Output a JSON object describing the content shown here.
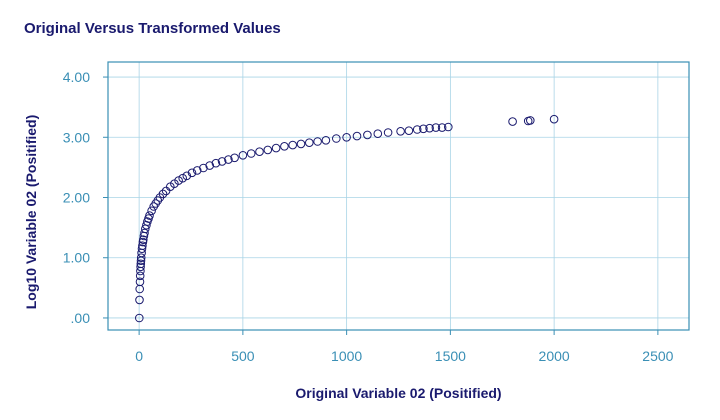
{
  "chart_data": {
    "type": "scatter",
    "title": "Original Versus Transformed Values",
    "xlabel": "Original Variable 02 (Positified)",
    "ylabel": "Log10 Variable 02 (Positified)",
    "xlim": [
      -150,
      2650
    ],
    "ylim": [
      -0.2,
      4.25
    ],
    "xticks": [
      0,
      500,
      1000,
      1500,
      2000,
      2500
    ],
    "xtick_labels": [
      "0",
      "500",
      "1000",
      "1500",
      "2000",
      "2500"
    ],
    "yticks": [
      0,
      1,
      2,
      3,
      4
    ],
    "ytick_labels": [
      ".00",
      "1.00",
      "2.00",
      "3.00",
      "4.00"
    ],
    "grid": true,
    "marker": "hollow-circle",
    "colors": {
      "marker": "#1a1a6e",
      "grid": "#a9d4e6",
      "frame": "#3a8fb5",
      "tick_text": "#3a8fb5",
      "title_text": "#1a1a6e"
    },
    "x": [
      1,
      2,
      3,
      4,
      5,
      6,
      7,
      8,
      9,
      10,
      12,
      14,
      16,
      18,
      20,
      23,
      26,
      30,
      35,
      40,
      45,
      50,
      60,
      70,
      80,
      90,
      100,
      115,
      130,
      150,
      170,
      190,
      210,
      230,
      255,
      280,
      310,
      340,
      370,
      400,
      430,
      460,
      500,
      540,
      580,
      620,
      660,
      700,
      740,
      780,
      820,
      860,
      900,
      950,
      1000,
      1050,
      1100,
      1150,
      1200,
      1260,
      1300,
      1340,
      1370,
      1400,
      1430,
      1460,
      1490,
      1800,
      1875,
      1885,
      2000
    ],
    "y": [
      0.0,
      0.3,
      0.48,
      0.6,
      0.7,
      0.78,
      0.85,
      0.9,
      0.95,
      1.0,
      1.08,
      1.15,
      1.2,
      1.26,
      1.3,
      1.36,
      1.41,
      1.48,
      1.54,
      1.6,
      1.65,
      1.7,
      1.78,
      1.85,
      1.9,
      1.95,
      2.0,
      2.06,
      2.11,
      2.18,
      2.23,
      2.28,
      2.32,
      2.36,
      2.41,
      2.45,
      2.49,
      2.53,
      2.57,
      2.6,
      2.63,
      2.66,
      2.7,
      2.73,
      2.76,
      2.79,
      2.82,
      2.85,
      2.87,
      2.89,
      2.91,
      2.93,
      2.95,
      2.98,
      3.0,
      3.02,
      3.04,
      3.06,
      3.08,
      3.1,
      3.11,
      3.13,
      3.14,
      3.15,
      3.16,
      3.16,
      3.17,
      3.26,
      3.27,
      3.28,
      3.3
    ]
  }
}
